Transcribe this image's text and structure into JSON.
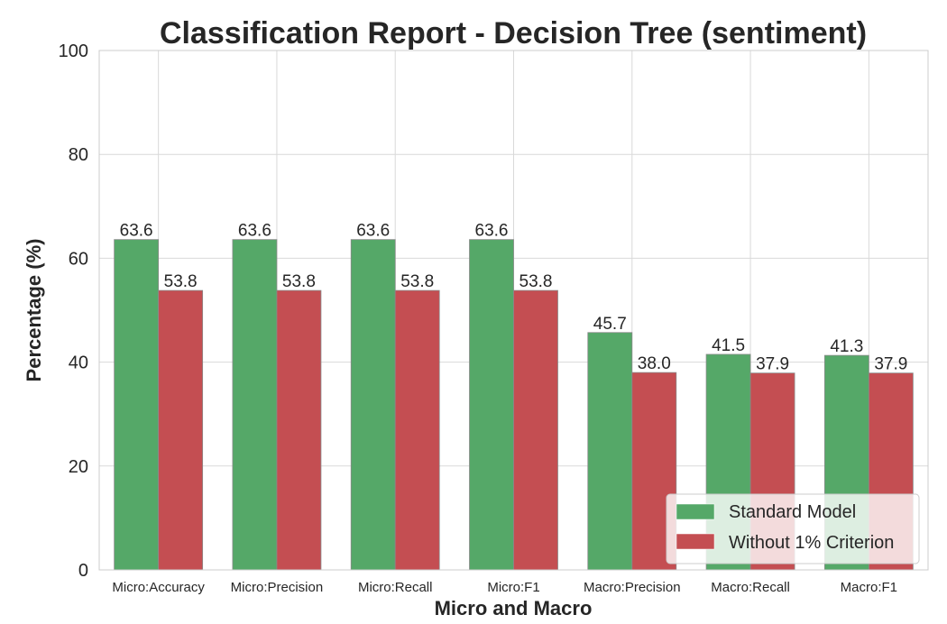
{
  "chart_data": {
    "type": "bar",
    "title": "Classification Report - Decision Tree (sentiment)",
    "xlabel": "Micro and Macro",
    "ylabel": "Percentage (%)",
    "ylim": [
      0,
      100
    ],
    "yticks": [
      0,
      20,
      40,
      60,
      80,
      100
    ],
    "categories": [
      "Micro:Accuracy",
      "Micro:Precision",
      "Micro:Recall",
      "Micro:F1",
      "Macro:Precision",
      "Macro:Recall",
      "Macro:F1"
    ],
    "series": [
      {
        "name": "Standard Model",
        "color": "#55a868",
        "values": [
          63.6,
          63.6,
          63.6,
          63.6,
          45.7,
          41.5,
          41.3
        ],
        "labels": [
          "63.6",
          "63.6",
          "63.6",
          "63.6",
          "45.7",
          "41.5",
          "41.3"
        ]
      },
      {
        "name": "Without 1% Criterion",
        "color": "#c44e52",
        "values": [
          53.8,
          53.8,
          53.8,
          53.8,
          38.0,
          37.9,
          37.9
        ],
        "labels": [
          "53.8",
          "53.8",
          "53.8",
          "53.8",
          "38.0",
          "37.9",
          "37.9"
        ]
      }
    ],
    "grid": true,
    "legend_position": "bottom-right"
  }
}
